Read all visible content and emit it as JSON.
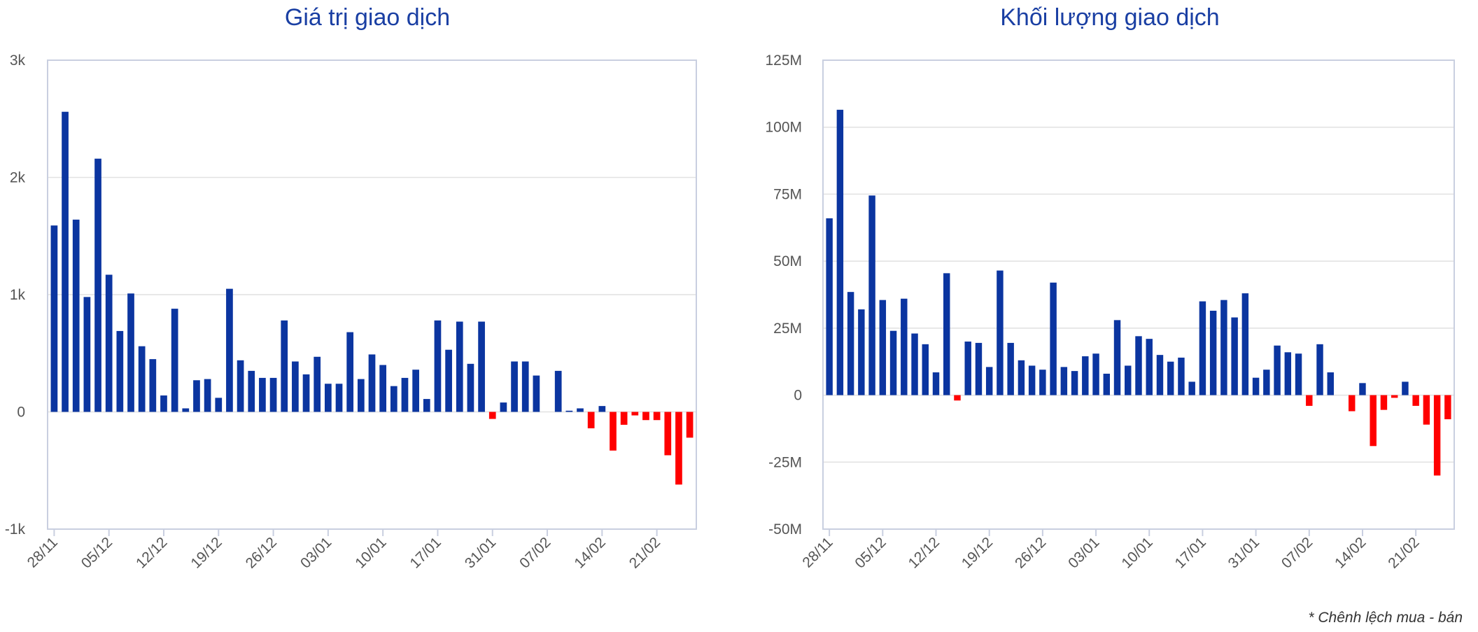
{
  "colors": {
    "positive": "#0b35a0",
    "negative": "#ff0000",
    "title": "#1a3fa3",
    "grid": "#e1e1e1",
    "axis": "#c9cfe0"
  },
  "footnote": "* Chênh lệch mua - bán",
  "chart_data": [
    {
      "type": "bar",
      "title": "Giá trị giao dịch",
      "ylim": [
        -1000,
        3000
      ],
      "yticks": [
        3000,
        2000,
        1000,
        0,
        -1000
      ],
      "ytick_labels": [
        "3k",
        "2k",
        "1k",
        "0",
        "-1k"
      ],
      "xtick_labels": [
        "28/11",
        "05/12",
        "12/12",
        "19/12",
        "26/12",
        "03/01",
        "10/01",
        "17/01",
        "31/01",
        "07/02",
        "14/02",
        "21/02"
      ],
      "xtick_index": [
        0,
        5,
        10,
        15,
        20,
        25,
        30,
        35,
        40,
        45,
        50,
        55
      ],
      "grid": true,
      "values": [
        1590,
        2560,
        1640,
        980,
        2160,
        1170,
        690,
        1010,
        560,
        450,
        140,
        880,
        30,
        270,
        280,
        120,
        1050,
        440,
        350,
        290,
        290,
        780,
        430,
        320,
        470,
        240,
        240,
        680,
        280,
        490,
        400,
        220,
        290,
        360,
        110,
        780,
        530,
        770,
        410,
        770,
        -60,
        80,
        430,
        430,
        310,
        0,
        350,
        10,
        30,
        -140,
        50,
        -330,
        -110,
        -30,
        -70,
        -70,
        -370,
        -620,
        -220
      ]
    },
    {
      "type": "bar",
      "title": "Khối lượng giao dịch",
      "ylim": [
        -50000000,
        125000000
      ],
      "yticks": [
        125000000,
        100000000,
        75000000,
        50000000,
        25000000,
        0,
        -25000000,
        -50000000
      ],
      "ytick_labels": [
        "125M",
        "100M",
        "75M",
        "50M",
        "25M",
        "0",
        "-25M",
        "-50M"
      ],
      "xtick_labels": [
        "28/11",
        "05/12",
        "12/12",
        "19/12",
        "26/12",
        "03/01",
        "10/01",
        "17/01",
        "31/01",
        "07/02",
        "14/02",
        "21/02"
      ],
      "xtick_index": [
        0,
        5,
        10,
        15,
        20,
        25,
        30,
        35,
        40,
        45,
        50,
        55
      ],
      "grid": true,
      "values": [
        66000000,
        106500000,
        38500000,
        32000000,
        74500000,
        35500000,
        24000000,
        36000000,
        23000000,
        19000000,
        8500000,
        45500000,
        -2000000,
        20000000,
        19500000,
        10500000,
        46500000,
        19500000,
        13000000,
        11000000,
        9500000,
        42000000,
        10500000,
        9000000,
        14500000,
        15500000,
        8000000,
        28000000,
        11000000,
        22000000,
        21000000,
        15000000,
        12500000,
        14000000,
        5000000,
        35000000,
        31500000,
        35500000,
        29000000,
        38000000,
        6500000,
        9500000,
        18500000,
        16000000,
        15500000,
        -4000000,
        19000000,
        8500000,
        0,
        -6000000,
        4500000,
        -19000000,
        -5500000,
        -1000000,
        5000000,
        -4000000,
        -11000000,
        -30000000,
        -9000000
      ]
    }
  ]
}
